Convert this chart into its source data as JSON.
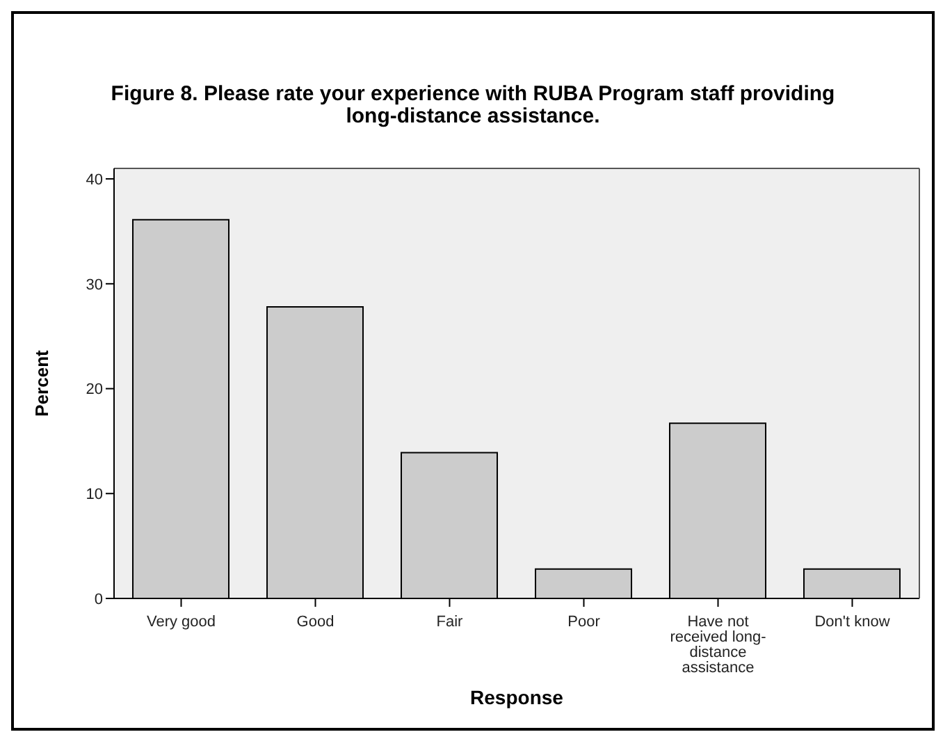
{
  "chart_data": {
    "type": "bar",
    "title": "Figure 8.  Please rate your experience with RUBA Program staff providing long-distance assistance.",
    "xlabel": "Response",
    "ylabel": "Percent",
    "categories": [
      "Very good",
      "Good",
      "Fair",
      "Poor",
      "Have not received long-distance assistance",
      "Don't know"
    ],
    "values": [
      36.1,
      27.8,
      13.9,
      2.8,
      16.7,
      2.8
    ],
    "color": "#cccccc",
    "ylim": [
      0,
      41
    ],
    "yticks": [
      0,
      10,
      20,
      30,
      40
    ],
    "grid": false
  }
}
